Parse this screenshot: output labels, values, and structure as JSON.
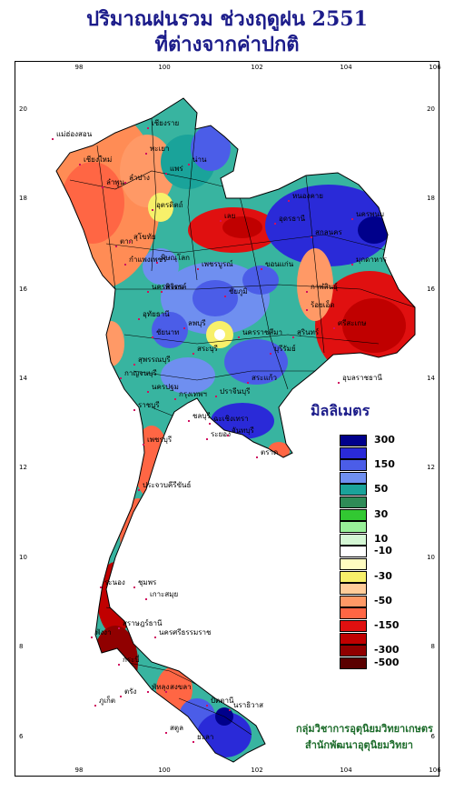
{
  "title": {
    "line1": "ปริมาณฝนรวม ช่วงฤดูฝน 2551",
    "line2": "ที่ต่างจากค่าปกติ"
  },
  "axes": {
    "lon_ticks": [
      "98",
      "100",
      "102",
      "104",
      "106"
    ],
    "lat_ticks": [
      "20",
      "18",
      "16",
      "14",
      "12",
      "10",
      "8",
      "6"
    ]
  },
  "legend": {
    "title": "มิลลิเมตร",
    "bins": [
      {
        "color": "#00008b",
        "label": "300"
      },
      {
        "color": "#2a2ad8",
        "label": ""
      },
      {
        "color": "#4b5de8",
        "label": "150"
      },
      {
        "color": "#6f8ff0",
        "label": ""
      },
      {
        "color": "#1aa39a",
        "label": "50"
      },
      {
        "color": "#2e8b57",
        "label": ""
      },
      {
        "color": "#32c832",
        "label": "30"
      },
      {
        "color": "#98f098",
        "label": ""
      },
      {
        "color": "#d4f7d4",
        "label": "10"
      },
      {
        "color": "#ffffff",
        "label": "-10"
      },
      {
        "color": "#fffcc0",
        "label": ""
      },
      {
        "color": "#f7f06a",
        "label": "-30"
      },
      {
        "color": "#ffcc99",
        "label": ""
      },
      {
        "color": "#ff9966",
        "label": "-50"
      },
      {
        "color": "#ff6644",
        "label": ""
      },
      {
        "color": "#e01010",
        "label": "-150"
      },
      {
        "color": "#c00000",
        "label": ""
      },
      {
        "color": "#900000",
        "label": "-300"
      },
      {
        "color": "#5a0000",
        "label": "-500"
      }
    ]
  },
  "places": [
    "เชียงราย",
    "เชียงใหม่",
    "แม่ฮ่องสอน",
    "ลำพูน",
    "ลำปาง",
    "พะเยา",
    "น่าน",
    "แพร่",
    "อุตรดิตถ์",
    "ตาก",
    "สุโขทัย",
    "พิษณุโลก",
    "กำแพงเพชร",
    "พิจิตร",
    "เพชรบูรณ์",
    "เลย",
    "หนองคาย",
    "อุดรธานี",
    "สกลนคร",
    "นครพนม",
    "มุกดาหาร",
    "ขอนแก่น",
    "กาฬสินธุ์",
    "ร้อยเอ็ด",
    "ชัยภูมิ",
    "นครราชสีมา",
    "บุรีรัมย์",
    "สุรินทร์",
    "ศรีสะเกษ",
    "อุบลราชธานี",
    "นครสวรรค์",
    "อุทัยธานี",
    "ชัยนาท",
    "ลพบุรี",
    "สระบุรี",
    "สุพรรณบุรี",
    "กาญจนบุรี",
    "ราชบุรี",
    "นครปฐม",
    "กรุงเทพฯ",
    "ปราจีนบุรี",
    "สระแก้ว",
    "ชลบุรี",
    "ระยอง",
    "จันทบุรี",
    "ตราด",
    "เพชรบุรี",
    "ประจวบคีรีขันธ์",
    "ชุมพร",
    "ระนอง",
    "สุราษฎร์ธานี",
    "นครศรีธรรมราช",
    "พังงา",
    "ภูเก็ต",
    "กระบี่",
    "ตรัง",
    "พัทลุง",
    "สงขลา",
    "สตูล",
    "ปัตตานี",
    "ยะลา",
    "นราธิวาส",
    "เกาะสมุย",
    "ฉะเชิงเทรา"
  ],
  "credit": {
    "line1": "กลุ่มวิชาการอุตุนิยมวิทยาเกษตร",
    "line2": "สำนักพัฒนาอุตุนิยมวิทยา"
  }
}
